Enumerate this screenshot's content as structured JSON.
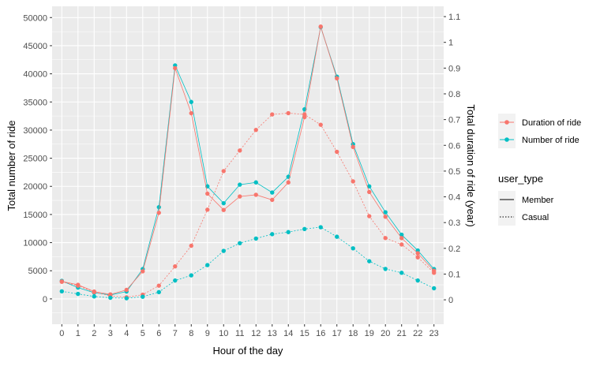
{
  "chart_data": {
    "type": "line",
    "xlabel": "Hour of the day",
    "ylabel_left": "Total number of ride",
    "ylabel_right": "Total duration of ride (year)",
    "x": [
      0,
      1,
      2,
      3,
      4,
      5,
      6,
      7,
      8,
      9,
      10,
      11,
      12,
      13,
      14,
      15,
      16,
      17,
      18,
      19,
      20,
      21,
      22,
      23
    ],
    "x_tick_labels": [
      "0",
      "1",
      "2",
      "3",
      "4",
      "5",
      "6",
      "7",
      "8",
      "9",
      "10",
      "11",
      "12",
      "13",
      "14",
      "15",
      "16",
      "17",
      "18",
      "19",
      "20",
      "21",
      "22",
      "23"
    ],
    "ylim_left": [
      -4500,
      52000
    ],
    "ylim_right": [
      -0.09467,
      1.14
    ],
    "y_ticks_left": [
      0,
      5000,
      10000,
      15000,
      20000,
      25000,
      30000,
      35000,
      40000,
      45000,
      50000
    ],
    "y_tick_labels_left": [
      "0",
      "5000",
      "10000",
      "15000",
      "20000",
      "25000",
      "30000",
      "35000",
      "40000",
      "45000",
      "50000"
    ],
    "y_ticks_right": [
      0,
      0.1,
      0.2,
      0.3,
      0.4,
      0.5,
      0.6,
      0.7,
      0.8,
      0.9,
      1.0,
      1.1
    ],
    "y_tick_labels_right": [
      "0",
      "0.1",
      "0.2",
      "0.3",
      "0.4",
      "0.5",
      "0.6",
      "0.7",
      "0.8",
      "0.9",
      "1",
      "1.1"
    ],
    "colors": {
      "duration": "#F8766D",
      "number": "#00BFC4",
      "panel": "#EBEBEB",
      "grid": "#FFFFFF"
    },
    "series": [
      {
        "name": "Number of ride",
        "user_type": "Member",
        "measure": "number",
        "linetype": "solid",
        "values": [
          3200,
          2000,
          1100,
          700,
          1300,
          5300,
          16300,
          41500,
          35000,
          20000,
          17000,
          20300,
          20700,
          18900,
          21700,
          33700,
          48300,
          39500,
          27500,
          20000,
          15400,
          11400,
          8600,
          5300
        ]
      },
      {
        "name": "Duration of ride",
        "user_type": "Member",
        "measure": "number",
        "linetype": "solid",
        "values": [
          3100,
          2500,
          1300,
          800,
          1600,
          4900,
          15300,
          41000,
          33000,
          18700,
          15800,
          18200,
          18500,
          17600,
          20700,
          32300,
          48400,
          39200,
          27000,
          19000,
          14600,
          10800,
          8100,
          5000
        ]
      },
      {
        "name": "Duration of ride",
        "user_type": "Casual",
        "measure": "duration",
        "linetype": "dotted",
        "values": [
          0.07,
          0.055,
          0.03,
          0.015,
          0.01,
          0.02,
          0.055,
          0.13,
          0.21,
          0.35,
          0.5,
          0.58,
          0.66,
          0.72,
          0.725,
          0.72,
          0.68,
          0.575,
          0.46,
          0.325,
          0.24,
          0.215,
          0.165,
          0.105
        ]
      },
      {
        "name": "Number of ride",
        "user_type": "Casual",
        "measure": "duration",
        "linetype": "dotted",
        "values": [
          0.033,
          0.023,
          0.013,
          0.008,
          0.006,
          0.012,
          0.03,
          0.075,
          0.095,
          0.135,
          0.19,
          0.22,
          0.238,
          0.255,
          0.263,
          0.275,
          0.282,
          0.245,
          0.2,
          0.15,
          0.12,
          0.105,
          0.075,
          0.045
        ]
      }
    ]
  },
  "legend": {
    "color_entries": [
      {
        "label": "Duration of ride",
        "color": "#F8766D"
      },
      {
        "label": "Number of ride",
        "color": "#00BFC4"
      }
    ],
    "linetype_title": "user_type",
    "linetype_entries": [
      {
        "label": "Member",
        "linetype": "solid"
      },
      {
        "label": "Casual",
        "linetype": "dotted"
      }
    ]
  }
}
